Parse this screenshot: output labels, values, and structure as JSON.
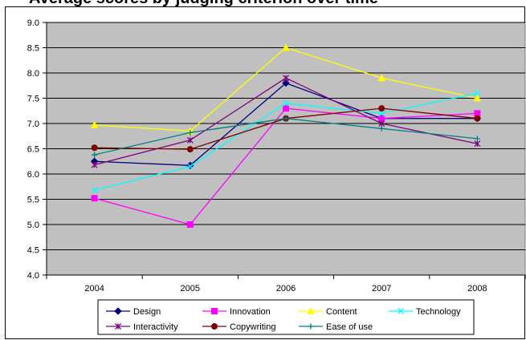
{
  "chart_data": {
    "type": "line",
    "title": "Average scores by judging criterion over time",
    "categories": [
      "2004",
      "2005",
      "2006",
      "2007",
      "2008"
    ],
    "ylim": [
      4.0,
      9.0
    ],
    "yticks": [
      "4.0",
      "4.5",
      "5.0",
      "5.5",
      "6.0",
      "6.5",
      "7.0",
      "7.5",
      "8.0",
      "8.5",
      "9.0"
    ],
    "plot_background": "#c0c0c0",
    "grid": true,
    "legend_position": "bottom",
    "series": [
      {
        "name": "Design",
        "color": "#000080",
        "marker": "diamond",
        "values": [
          6.25,
          6.17,
          7.8,
          7.1,
          7.1
        ]
      },
      {
        "name": "Innovation",
        "color": "#ff00ff",
        "marker": "square",
        "values": [
          5.52,
          5.0,
          7.3,
          7.1,
          7.2
        ]
      },
      {
        "name": "Content",
        "color": "#ffff00",
        "marker": "triangle",
        "values": [
          6.97,
          6.85,
          8.5,
          7.9,
          7.5
        ]
      },
      {
        "name": "Technology",
        "color": "#00ffff",
        "marker": "x",
        "values": [
          5.68,
          6.15,
          7.4,
          7.2,
          7.6
        ]
      },
      {
        "name": "Interactivity",
        "color": "#800080",
        "marker": "star",
        "values": [
          6.18,
          6.67,
          7.9,
          7.0,
          6.6
        ]
      },
      {
        "name": "Copywriting",
        "color": "#800000",
        "marker": "circle",
        "values": [
          6.52,
          6.49,
          7.1,
          7.3,
          7.1
        ]
      },
      {
        "name": "Ease of use",
        "color": "#008080",
        "marker": "plus",
        "values": [
          6.38,
          6.82,
          7.1,
          6.9,
          6.7
        ]
      }
    ]
  }
}
